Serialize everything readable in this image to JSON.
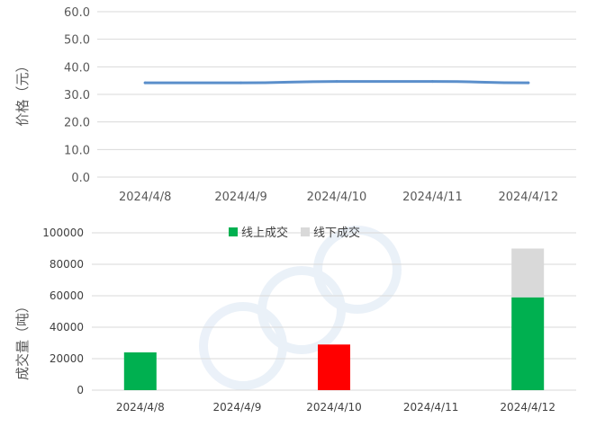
{
  "chart_data": [
    {
      "type": "line",
      "title": "",
      "xlabel": "",
      "ylabel": "价格（元）",
      "categories": [
        "2024/4/8",
        "2024/4/9",
        "2024/4/10",
        "2024/4/11",
        "2024/4/12"
      ],
      "series": [
        {
          "values": [
            34.2,
            34.2,
            34.7,
            34.7,
            34.2
          ]
        }
      ],
      "ylim": [
        0,
        60
      ],
      "yticks": [
        "0.0",
        "10.0",
        "20.0",
        "30.0",
        "40.0",
        "50.0",
        "60.0"
      ],
      "grid": true,
      "colors": {
        "line": "#5B8FCB",
        "grid": "#D9D9D9"
      }
    },
    {
      "type": "bar",
      "stacked": true,
      "title": "",
      "xlabel": "",
      "ylabel": "成交量（吨）",
      "categories": [
        "2024/4/8",
        "2024/4/9",
        "2024/4/10",
        "2024/4/11",
        "2024/4/12"
      ],
      "series": [
        {
          "name": "线上成交",
          "values": [
            24000,
            0,
            29000,
            0,
            59000
          ],
          "color": "#00B050",
          "point_colors": [
            "#00B050",
            "#00B050",
            "#FF0000",
            "#00B050",
            "#00B050"
          ]
        },
        {
          "name": "线下成交",
          "values": [
            0,
            0,
            0,
            0,
            31000
          ],
          "color": "#D9D9D9"
        }
      ],
      "ylim": [
        0,
        100000
      ],
      "yticks": [
        "0",
        "20000",
        "40000",
        "60000",
        "80000",
        "100000"
      ],
      "grid": true,
      "legend": "top-center"
    }
  ]
}
